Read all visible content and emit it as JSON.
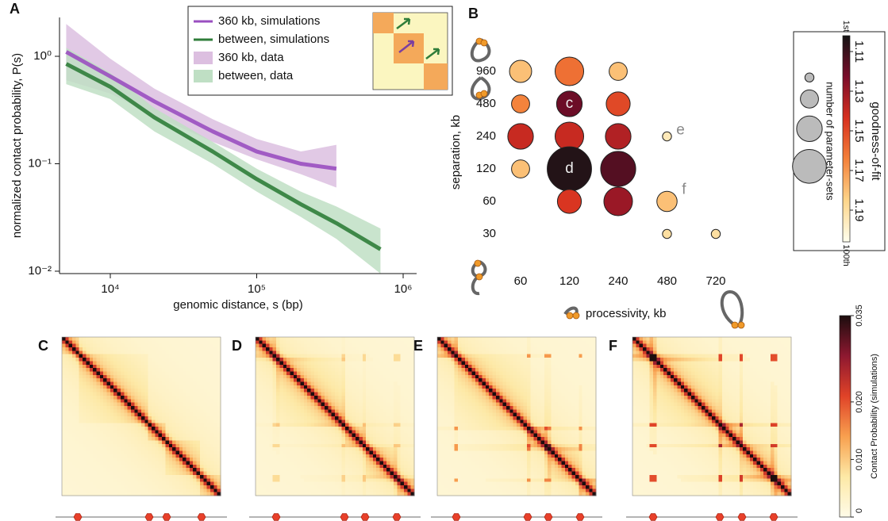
{
  "chart_data": [
    {
      "type": "line",
      "panel": "A",
      "x_label": "genomic distance, s (bp)",
      "y_label": "normalized contact probability, P(s)",
      "xlog": true,
      "ylog": true,
      "xlim": [
        4500,
        1236000
      ],
      "ylim": [
        0.0095,
        2.3
      ],
      "xticks": [
        {
          "value": 10000,
          "label": "10⁴"
        },
        {
          "value": 100000,
          "label": "10⁵"
        },
        {
          "value": 1000000,
          "label": "10⁶"
        }
      ],
      "yticks": [
        {
          "value": 0.01,
          "label": "10⁻²"
        },
        {
          "value": 0.1,
          "label": "10⁻¹"
        },
        {
          "value": 1,
          "label": "10⁰"
        }
      ],
      "x": [
        5000,
        10000,
        20000,
        50000,
        100000,
        200000,
        350000,
        700000
      ],
      "series": [
        {
          "name": "360 kb, simulations",
          "color": "#9a4fc0",
          "values": [
            1.1,
            0.65,
            0.38,
            0.2,
            0.13,
            0.1,
            0.09,
            null
          ]
        },
        {
          "name": "between, simulations",
          "color": "#2f7d3a",
          "values": [
            0.85,
            0.52,
            0.27,
            0.13,
            0.072,
            0.042,
            0.028,
            0.016
          ]
        },
        {
          "name": "360 kb, data",
          "color": "#dcbfe0",
          "lower": [
            0.6,
            0.45,
            0.28,
            0.16,
            0.11,
            0.08,
            0.06,
            null
          ],
          "upper": [
            2.0,
            0.95,
            0.5,
            0.26,
            0.17,
            0.13,
            0.15,
            null
          ]
        },
        {
          "name": "between, data",
          "color": "#bfdfc4",
          "lower": [
            0.55,
            0.4,
            0.2,
            0.1,
            0.055,
            0.032,
            0.02,
            0.0095
          ],
          "upper": [
            1.2,
            0.7,
            0.33,
            0.16,
            0.09,
            0.055,
            0.04,
            0.025
          ]
        }
      ]
    },
    {
      "type": "bubble",
      "panel": "B",
      "x_label": "processivity, kb",
      "y_label": "separation, kb",
      "xticks": [
        60,
        120,
        240,
        480,
        720
      ],
      "yticks": [
        30,
        60,
        120,
        240,
        480,
        960
      ],
      "points": {
        "x": [
          60,
          60,
          60,
          60,
          120,
          120,
          120,
          120,
          120,
          240,
          240,
          240,
          240,
          240,
          480,
          480,
          480,
          720
        ],
        "y": [
          960,
          480,
          240,
          120,
          960,
          480,
          240,
          120,
          60,
          960,
          480,
          240,
          120,
          60,
          240,
          60,
          30,
          30
        ],
        "count": [
          6,
          4,
          8,
          4,
          10,
          8,
          10,
          24,
          7,
          4,
          7,
          8,
          15,
          10,
          1,
          5,
          1,
          1
        ],
        "fit": [
          1.18,
          1.165,
          1.14,
          1.18,
          1.16,
          1.12,
          1.14,
          1.105,
          1.145,
          1.18,
          1.15,
          1.135,
          1.115,
          1.13,
          1.195,
          1.18,
          1.19,
          1.19
        ],
        "labels": [
          null,
          null,
          null,
          null,
          null,
          "c",
          null,
          "d",
          null,
          null,
          null,
          null,
          null,
          null,
          "e",
          "f",
          null,
          null
        ]
      },
      "fit_title": "goodness-of-fit",
      "fit_lim": [
        1.102,
        1.206
      ],
      "fit_ticks": [
        1.11,
        1.13,
        1.15,
        1.17,
        1.19
      ],
      "fit_end_labels": [
        "1st",
        "100th"
      ],
      "colormap": [
        "#141414",
        "#7a0c2a",
        "#d7301f",
        "#f4813a",
        "#fdd58a",
        "#ffffee"
      ],
      "size_title": "number of parameter-sets",
      "size_legend": [
        1,
        4,
        8,
        14
      ]
    },
    {
      "type": "heatmap",
      "panel": "C",
      "boundaries": [
        0.1,
        0.55,
        0.66,
        0.88
      ]
    },
    {
      "type": "heatmap",
      "panel": "D",
      "boundaries": [
        0.13,
        0.56,
        0.69,
        0.89
      ]
    },
    {
      "type": "heatmap",
      "panel": "E",
      "boundaries": [
        0.12,
        0.57,
        0.7,
        0.9
      ]
    },
    {
      "type": "heatmap",
      "panel": "F",
      "boundaries": [
        0.13,
        0.55,
        0.69,
        0.89
      ]
    },
    {
      "type": "colorbar",
      "title": "Contact Probability (simulations)",
      "ylim": [
        0,
        0.035
      ],
      "yticks": [
        0,
        {
          "value": 0.01,
          "label": "0.010"
        },
        {
          "value": 0.02,
          "label": "0.020"
        },
        0.035
      ],
      "colormap": [
        "#fffbe8",
        "#fde9a6",
        "#f8a04f",
        "#e04328",
        "#8e1830",
        "#1c0d0e"
      ]
    }
  ]
}
